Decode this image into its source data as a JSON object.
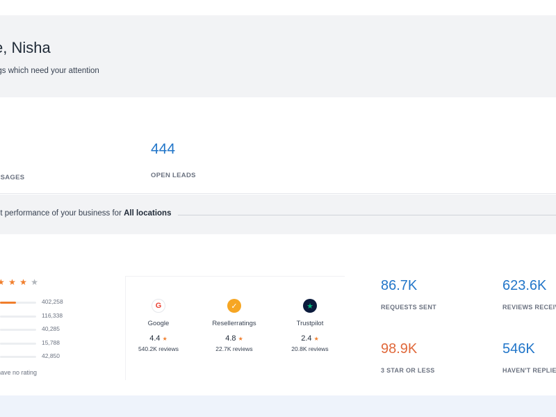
{
  "welcome": {
    "title": "e, Nisha",
    "subtitle": "ngs which need your attention"
  },
  "stats": [
    {
      "value": "",
      "label": "SSAGES"
    },
    {
      "value": "444",
      "label": "OPEN LEADS"
    }
  ],
  "performance": {
    "prefix": "nt performance of your business for ",
    "location": "All locations"
  },
  "rating_distribution": {
    "stars_filled": "★ ★ ★ ",
    "stars_empty": "★",
    "rows": [
      {
        "count": "402,258",
        "fill_fraction": 0.45
      },
      {
        "count": "116,338",
        "fill_fraction": 0.0
      },
      {
        "count": "40,285",
        "fill_fraction": 0.0
      },
      {
        "count": "15,788",
        "fill_fraction": 0.0
      },
      {
        "count": "42,850",
        "fill_fraction": 0.0
      }
    ],
    "no_rating_text": "have no rating"
  },
  "sources": [
    {
      "name": "Google",
      "rating": "4.4",
      "reviews": "540.2K reviews",
      "icon": "google-icon",
      "icon_glyph": "G",
      "icon_color": "#ea4335",
      "icon_bg": "#ffffff"
    },
    {
      "name": "Resellerratings",
      "rating": "4.8",
      "reviews": "22.7K reviews",
      "icon": "check-badge-icon",
      "icon_glyph": "✓",
      "icon_color": "#ffffff",
      "icon_bg": "#f6a623"
    },
    {
      "name": "Trustpilot",
      "rating": "2.4",
      "reviews": "20.8K reviews",
      "icon": "trustpilot-star-icon",
      "icon_glyph": "★",
      "icon_color": "#00b67a",
      "icon_bg": "#0b1a3c"
    }
  ],
  "kpis": [
    {
      "value": "86.7K",
      "label": "REQUESTS SENT",
      "color": "#2276c9"
    },
    {
      "value": "623.6K",
      "label": "REVIEWS RECEIVE",
      "color": "#2276c9"
    },
    {
      "value": "98.9K",
      "label": "3 STAR OR LESS",
      "color": "#e0683a"
    },
    {
      "value": "546K",
      "label": "HAVEN'T REPLIED",
      "color": "#2276c9"
    }
  ]
}
